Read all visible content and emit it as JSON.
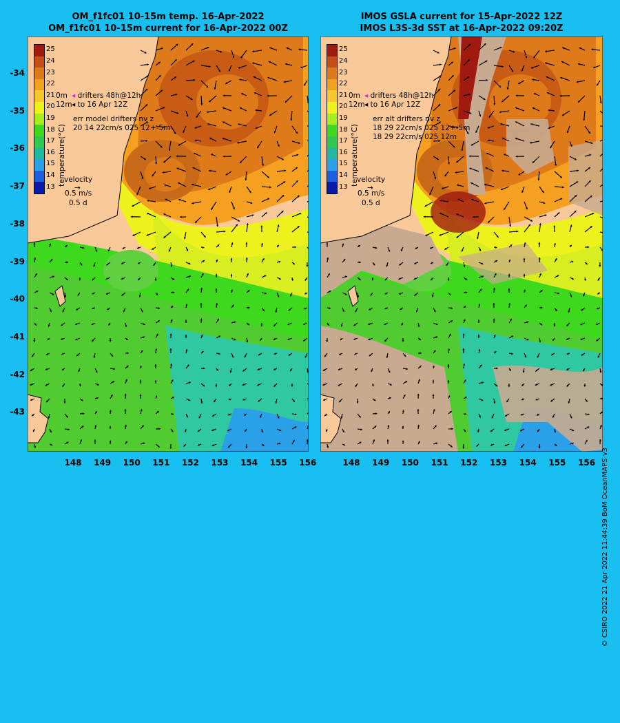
{
  "left_panel": {
    "title_line1": "OM_f1fc01 10-15m temp. 16-Apr-2022",
    "title_line2": "OM_f1fc01 10-15m current for 16-Apr-2022 00Z",
    "legend": {
      "drifter_line1": "drifters 48h@12h",
      "drifter_line2": "to 16 Apr 12Z",
      "depth1": "0m",
      "depth2": "12m",
      "err_line1": "err model drifters nv z",
      "err_line2": "20 14 22cm/s 025 12+-5m",
      "err_line3": ""
    }
  },
  "right_panel": {
    "title_line1": "IMOS GSLA current for 15-Apr-2022 12Z",
    "title_line2": "IMOS L3S-3d SST at 16-Apr-2022 09:20Z",
    "legend": {
      "drifter_line1": "drifters 48h@12h",
      "drifter_line2": "to 16 Apr 12Z",
      "depth1": "0m",
      "depth2": "12m",
      "err_line1": "err alt drifters nv z",
      "err_line2": "18 29 22cm/s 025 12+-5m",
      "err_line3": "18 29 22cm/s 025 12m"
    }
  },
  "colorbar": {
    "title": "temperature(°C)",
    "ticks": [
      "25",
      "24",
      "23",
      "22",
      "21",
      "20",
      "19",
      "18",
      "17",
      "16",
      "15",
      "14",
      "13"
    ],
    "colors": [
      "#a01a10",
      "#c44f14",
      "#df7a1a",
      "#f0a21c",
      "#f6c82a",
      "#eef21c",
      "#a8ee1e",
      "#3ed81c",
      "#30c850",
      "#20b8a0",
      "#2aa0e8",
      "#1a60e0",
      "#0a1aa8"
    ]
  },
  "velocity_legend": {
    "label": "velocity",
    "speed": "0.5 m/s",
    "duration": "0.5 d"
  },
  "y_axis_labels": [
    "-34",
    "-35",
    "-36",
    "-37",
    "-38",
    "-39",
    "-40",
    "-41",
    "-42",
    "-43"
  ],
  "x_axis_labels": [
    "148",
    "149",
    "150",
    "151",
    "152",
    "153",
    "154",
    "155",
    "156"
  ],
  "copyright": "© CSIRO 2022   21 Apr 2022 11:44:39 BoM OceanMAPS v3",
  "colors": {
    "background": "#18bff0",
    "land": "#f9c99a",
    "cloud_mask": "#c8aa90"
  }
}
